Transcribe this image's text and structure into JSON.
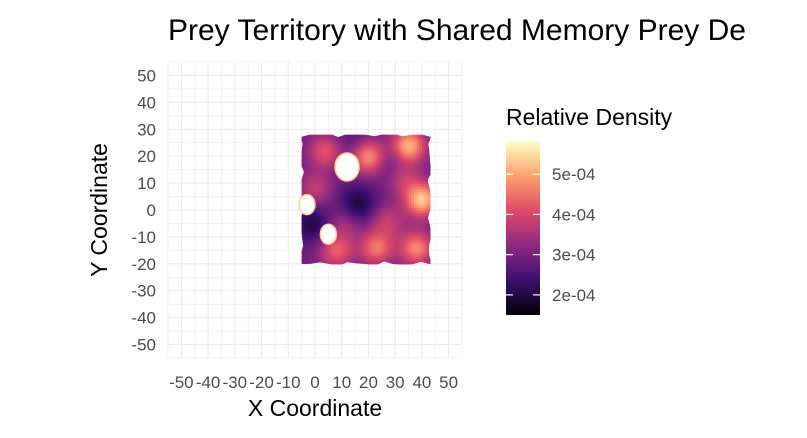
{
  "chart_data": {
    "type": "heatmap",
    "title": "Prey Territory with Shared Memory Prey De",
    "xlabel": "X Coordinate",
    "ylabel": "Y Coordinate",
    "xlim": [
      -55,
      55
    ],
    "ylim": [
      -55,
      55
    ],
    "x_ticks": [
      -50,
      -40,
      -30,
      -20,
      -10,
      0,
      10,
      20,
      30,
      40,
      50
    ],
    "y_ticks": [
      -50,
      -40,
      -30,
      -20,
      -10,
      0,
      10,
      20,
      30,
      40,
      50
    ],
    "x_tick_labels": [
      "-50",
      "-40",
      "-30",
      "-20",
      "-10",
      "0",
      "10",
      "20",
      "30",
      "40",
      "50"
    ],
    "y_tick_labels": [
      "-50",
      "-40",
      "-30",
      "-20",
      "-10",
      "0",
      "10",
      "20",
      "30",
      "40",
      "50"
    ],
    "grid": true,
    "data_extent": {
      "x": [
        -5,
        43
      ],
      "y": [
        -20,
        28
      ]
    },
    "legend": {
      "title": "Relative Density",
      "position": "right",
      "range": [
        0.00015,
        0.00058
      ],
      "ticks": [
        0.0002,
        0.0003,
        0.0004,
        0.0005
      ],
      "tick_labels": [
        "2e-04",
        "3e-04",
        "4e-04",
        "5e-04"
      ],
      "colormap": "magma",
      "color_stops": [
        "#000004",
        "#3b0f70",
        "#8c2981",
        "#de4968",
        "#fe9f6d",
        "#fcfdbf"
      ]
    },
    "baseline_density": 0.00029,
    "hotspots": [
      {
        "x": 35,
        "y": 24,
        "density": 0.00052
      },
      {
        "x": 40,
        "y": 4,
        "density": 0.00053
      },
      {
        "x": 20,
        "y": 20,
        "density": 0.00049
      },
      {
        "x": 4,
        "y": 22,
        "density": 0.00042
      },
      {
        "x": 38,
        "y": -14,
        "density": 0.00047
      },
      {
        "x": 23,
        "y": -14,
        "density": 0.00045
      },
      {
        "x": 8,
        "y": -15,
        "density": 0.00043
      },
      {
        "x": 0,
        "y": 8,
        "density": 0.00038
      },
      {
        "x": 27,
        "y": -4,
        "density": 0.00038
      },
      {
        "x": 33,
        "y": 12,
        "density": 0.00038
      },
      {
        "x": 11,
        "y": -5,
        "density": 0.00036
      }
    ],
    "coldspots": [
      {
        "x": 16,
        "y": 2,
        "density": 0.00019
      },
      {
        "x": -1,
        "y": -5,
        "density": 0.0002
      },
      {
        "x": 29,
        "y": 18,
        "density": 0.00024
      },
      {
        "x": 14,
        "y": 25,
        "density": 0.00025
      }
    ],
    "empty_areas": [
      {
        "x": 12,
        "y": 16
      },
      {
        "x": 5,
        "y": -9
      },
      {
        "x": -3,
        "y": 2
      }
    ]
  }
}
